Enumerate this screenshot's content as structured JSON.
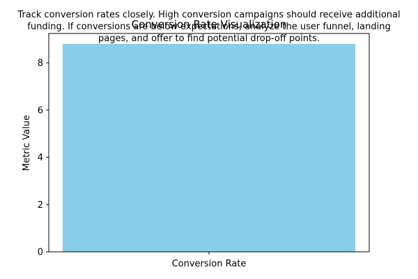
{
  "chart_data": {
    "type": "bar",
    "title": "Conversion Rate Visualization",
    "annotation_lines": [
      "Track conversion rates closely. High conversion campaigns should receive additional",
      "funding. If conversions are below expectations, analyze the user funnel, landing",
      "pages, and offer to find potential drop-off points."
    ],
    "xlabel": "",
    "ylabel": "Metric Value",
    "categories": [
      "Conversion Rate"
    ],
    "values": [
      8.8
    ],
    "ylim": [
      0,
      9.24
    ],
    "yticks": [
      0,
      2,
      4,
      6,
      8
    ],
    "bar_color": "#87ceeb",
    "grid": false
  }
}
